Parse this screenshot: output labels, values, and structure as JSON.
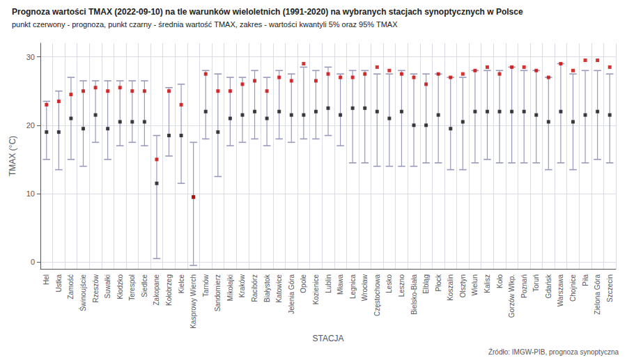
{
  "chart_data": {
    "type": "scatter",
    "title": "Prognoza wartości TMAX (2022-09-10) na tle warunków wieloletnich (1991-2020) na wybranych stacjach synoptycznych w Polsce",
    "subtitle": "punkt czerwony - prognoza, punkt czarny - średnia wartość TMAX, zakres - wartości kwantyli 5% oraz 95% TMAX",
    "xlabel": "STACJA",
    "ylabel": "TMAX (°C)",
    "source": "Źródło: IMGW-PIB, prognoza synoptyczna",
    "categories": [
      "Hel",
      "Ustka",
      "Zamość",
      "Świnoujście",
      "Rzeszów",
      "Suwałki",
      "Kłodzko",
      "Terespol",
      "Siedlce",
      "Zakopane",
      "Kołobrzeg",
      "Kielce",
      "Kasprowy Wierch",
      "Tarnów",
      "Sandomierz",
      "Mikołajki",
      "Kraków",
      "Racibórz",
      "Białystok",
      "Katowice",
      "Jelenia Góra",
      "Opole",
      "Kozienice",
      "Lublin",
      "Mława",
      "Legnica",
      "Wrocław",
      "Częstochowa",
      "Lesko",
      "Leszno",
      "Bielsko-Biała",
      "Elbląg",
      "Płock",
      "Koszalin",
      "Olsztyn",
      "Wielun",
      "Kalisz",
      "Koło",
      "Gorzów Wlkp.",
      "Poznań",
      "Toruń",
      "Gdańsk",
      "Warszawa",
      "Chojnice",
      "Piła",
      "Zielona Góra",
      "Szczecin"
    ],
    "error_bars": {
      "color": "#9999bb",
      "low": [
        15.0,
        13.5,
        15.0,
        14.0,
        17.5,
        15.0,
        17.0,
        17.5,
        17.0,
        0.5,
        15.5,
        11.5,
        -0.5,
        18.0,
        12.5,
        17.0,
        17.5,
        18.0,
        17.0,
        18.0,
        17.5,
        18.0,
        18.0,
        18.5,
        17.0,
        14.5,
        14.5,
        14.0,
        14.0,
        14.0,
        14.0,
        14.5,
        14.5,
        13.5,
        13.5,
        14.5,
        15.0,
        14.5,
        14.5,
        14.5,
        14.5,
        13.5,
        14.5,
        13.5,
        14.5,
        15.0,
        14.5
      ],
      "high": [
        23.5,
        25.0,
        27.0,
        26.5,
        26.5,
        26.5,
        26.5,
        26.5,
        26.5,
        18.5,
        25.5,
        26.0,
        17.5,
        28.0,
        27.5,
        27.0,
        27.0,
        28.0,
        27.0,
        28.0,
        27.5,
        28.5,
        28.0,
        28.5,
        27.5,
        28.0,
        28.0,
        27.5,
        27.5,
        28.0,
        27.5,
        27.5,
        27.5,
        27.0,
        27.0,
        28.0,
        28.0,
        28.0,
        28.5,
        28.0,
        28.0,
        27.0,
        29.0,
        27.5,
        28.0,
        28.0,
        27.5
      ]
    },
    "series": [
      {
        "color": "#111111",
        "marker": "square",
        "values": [
          19.0,
          19.0,
          21.0,
          19.5,
          21.5,
          19.5,
          20.5,
          20.5,
          20.5,
          11.5,
          18.5,
          18.5,
          9.5,
          22.0,
          19.0,
          21.0,
          21.5,
          22.0,
          21.0,
          22.0,
          21.5,
          21.5,
          22.0,
          22.5,
          21.5,
          22.5,
          22.5,
          22.0,
          21.0,
          22.0,
          20.0,
          20.0,
          21.5,
          19.5,
          20.5,
          22.0,
          22.0,
          22.0,
          22.0,
          22.0,
          21.5,
          20.5,
          22.0,
          20.5,
          21.5,
          22.0,
          21.5
        ]
      },
      {
        "color": "#cc0000",
        "marker": "square",
        "values": [
          23.0,
          23.5,
          24.5,
          25.0,
          25.5,
          25.0,
          25.5,
          25.0,
          25.0,
          15.0,
          25.0,
          23.0,
          9.5,
          27.5,
          25.0,
          25.0,
          26.0,
          26.5,
          25.0,
          27.0,
          26.5,
          29.0,
          26.5,
          27.5,
          27.0,
          27.0,
          27.5,
          28.5,
          28.0,
          27.5,
          27.0,
          26.0,
          27.5,
          27.0,
          27.5,
          28.0,
          28.5,
          27.5,
          28.5,
          28.5,
          28.0,
          27.0,
          29.0,
          28.0,
          29.5,
          29.5,
          28.5
        ]
      }
    ],
    "ylim": [
      -1,
      32
    ],
    "yticks": [
      0,
      10,
      20,
      30
    ],
    "grid": true
  }
}
